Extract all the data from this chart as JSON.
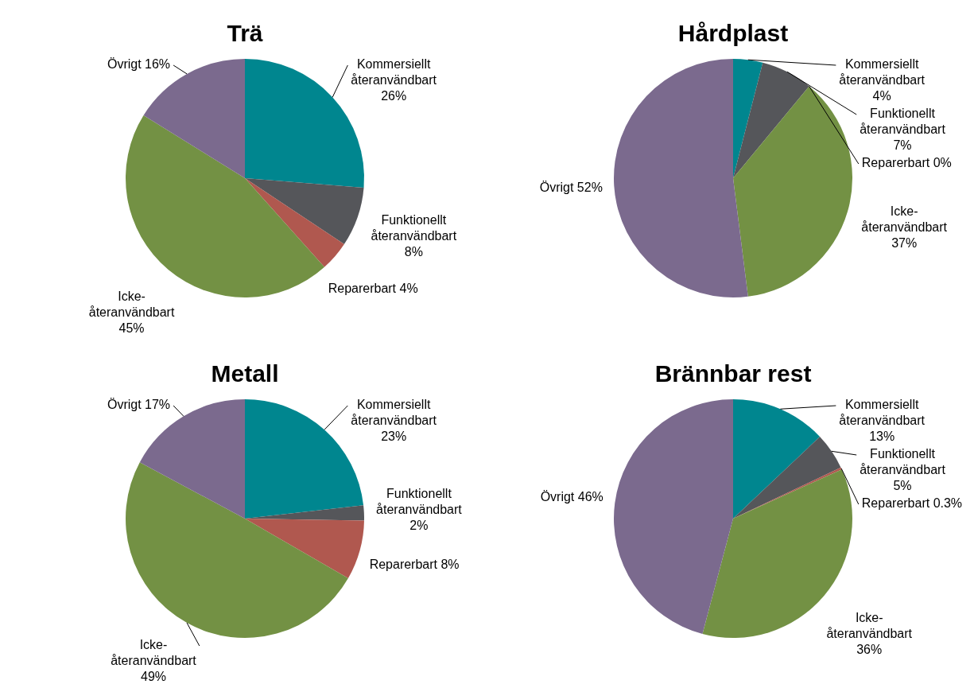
{
  "chart_data": [
    {
      "type": "pie",
      "title": "Trä",
      "categories": [
        "Kommersiellt återanvändbart",
        "Funktionellt återanvändbart",
        "Reparerbart",
        "Icke-återanvändbart",
        "Övrigt"
      ],
      "values": [
        26,
        8,
        4,
        45,
        16
      ],
      "value_labels": [
        "26%",
        "8%",
        "4%",
        "45%",
        "16%"
      ],
      "colors": [
        "#00868f",
        "#55565a",
        "#b0584f",
        "#739144",
        "#7b6a8e"
      ]
    },
    {
      "type": "pie",
      "title": "Hårdplast",
      "categories": [
        "Kommersiellt återanvändbart",
        "Funktionellt återanvändbart",
        "Reparerbart",
        "Icke-återanvändbart",
        "Övrigt"
      ],
      "values": [
        4,
        7,
        0,
        37,
        52
      ],
      "value_labels": [
        "4%",
        "7%",
        "0%",
        "37%",
        "52%"
      ],
      "colors": [
        "#00868f",
        "#55565a",
        "#b0584f",
        "#739144",
        "#7b6a8e"
      ]
    },
    {
      "type": "pie",
      "title": "Metall",
      "categories": [
        "Kommersiellt återanvändbart",
        "Funktionellt återanvändbart",
        "Reparerbart",
        "Icke-återanvändbart",
        "Övrigt"
      ],
      "values": [
        23,
        2,
        8,
        49,
        17
      ],
      "value_labels": [
        "23%",
        "2%",
        "8%",
        "49%",
        "17%"
      ],
      "colors": [
        "#00868f",
        "#55565a",
        "#b0584f",
        "#739144",
        "#7b6a8e"
      ]
    },
    {
      "type": "pie",
      "title": "Brännbar rest",
      "categories": [
        "Kommersiellt återanvändbart",
        "Funktionellt återanvändbart",
        "Reparerbart",
        "Icke-återanvändbart",
        "Övrigt"
      ],
      "values": [
        13,
        5,
        0.3,
        36,
        46
      ],
      "value_labels": [
        "13%",
        "5%",
        "0.3%",
        "36%",
        "46%"
      ],
      "colors": [
        "#00868f",
        "#55565a",
        "#b0584f",
        "#739144",
        "#7b6a8e"
      ]
    }
  ]
}
